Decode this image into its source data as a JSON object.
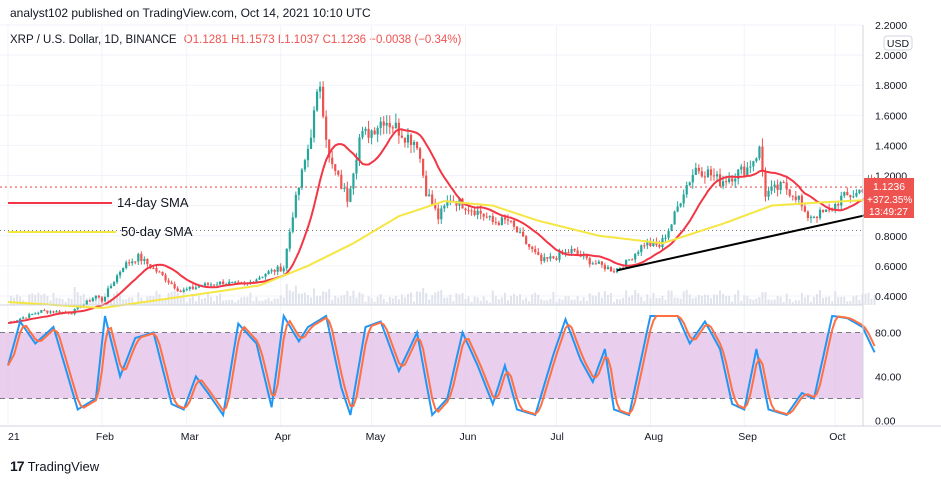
{
  "header": {
    "text": "analyst102 published on TradingView.com, Oct 14, 2021 10:10 UTC"
  },
  "legend": {
    "symbol": "XRP / U.S. Dollar, 1D, BINANCE",
    "open": "O1.1281",
    "high": "H1.1573",
    "low": "L1.1037",
    "close": "C1.1236",
    "change": "−0.0038 (−0.34%)"
  },
  "price_badge": {
    "price": "1.1236",
    "change": "+372.35%",
    "countdown": "13:49:27",
    "color": "#ef5350"
  },
  "currency": "USD",
  "footer": {
    "brand": "TradingView",
    "logo": "17"
  },
  "colors": {
    "up": "#26a69a",
    "down": "#ef5350",
    "sma14": "#f23645",
    "sma50": "#f5e642",
    "trendline": "#000000",
    "stoch_k": "#2196f3",
    "stoch_d": "#ff7043",
    "stoch_band": "#e1bee7"
  },
  "chart_data": [
    {
      "type": "candlestick",
      "title": "XRP / U.S. Dollar, 1D, BINANCE",
      "ylim": [
        0.34,
        2.2
      ],
      "y_ticks": [
        "2.2000",
        "2.0000",
        "1.8000",
        "1.6000",
        "1.4000",
        "1.2000",
        "1.0000",
        "0.8000",
        "0.6000",
        "0.4000"
      ],
      "x_ticks": [
        "21",
        "Feb",
        "Mar",
        "Apr",
        "May",
        "Jun",
        "Jul",
        "Aug",
        "Sep",
        "Oct"
      ],
      "annotations": [
        "14-day SMA",
        "50-day SMA"
      ],
      "close_anchors": [
        [
          "2021-01-01",
          0.22
        ],
        [
          "2021-01-12",
          0.3
        ],
        [
          "2021-01-22",
          0.29
        ],
        [
          "2021-01-30",
          0.4
        ],
        [
          "2021-02-01",
          0.37
        ],
        [
          "2021-02-08",
          0.6
        ],
        [
          "2021-02-13",
          0.66
        ],
        [
          "2021-02-20",
          0.55
        ],
        [
          "2021-02-27",
          0.43
        ],
        [
          "2021-03-06",
          0.47
        ],
        [
          "2021-03-13",
          0.49
        ],
        [
          "2021-03-20",
          0.47
        ],
        [
          "2021-03-27",
          0.55
        ],
        [
          "2021-04-02",
          0.59
        ],
        [
          "2021-04-05",
          0.95
        ],
        [
          "2021-04-10",
          1.38
        ],
        [
          "2021-04-14",
          1.82
        ],
        [
          "2021-04-17",
          1.3
        ],
        [
          "2021-04-23",
          1.05
        ],
        [
          "2021-04-27",
          1.45
        ],
        [
          "2021-05-01",
          1.5
        ],
        [
          "2021-05-05",
          1.58
        ],
        [
          "2021-05-09",
          1.52
        ],
        [
          "2021-05-12",
          1.47
        ],
        [
          "2021-05-16",
          1.42
        ],
        [
          "2021-05-19",
          1.1
        ],
        [
          "2021-05-23",
          0.92
        ],
        [
          "2021-05-27",
          1.05
        ],
        [
          "2021-06-01",
          1.0
        ],
        [
          "2021-06-06",
          0.95
        ],
        [
          "2021-06-10",
          0.89
        ],
        [
          "2021-06-15",
          0.9
        ],
        [
          "2021-06-21",
          0.75
        ],
        [
          "2021-06-26",
          0.63
        ],
        [
          "2021-07-01",
          0.66
        ],
        [
          "2021-07-06",
          0.7
        ],
        [
          "2021-07-12",
          0.63
        ],
        [
          "2021-07-20",
          0.57
        ],
        [
          "2021-07-24",
          0.62
        ],
        [
          "2021-07-30",
          0.75
        ],
        [
          "2021-08-04",
          0.73
        ],
        [
          "2021-08-08",
          0.88
        ],
        [
          "2021-08-12",
          1.1
        ],
        [
          "2021-08-16",
          1.25
        ],
        [
          "2021-08-20",
          1.22
        ],
        [
          "2021-08-24",
          1.16
        ],
        [
          "2021-08-28",
          1.2
        ],
        [
          "2021-09-02",
          1.25
        ],
        [
          "2021-09-06",
          1.37
        ],
        [
          "2021-09-08",
          1.08
        ],
        [
          "2021-09-14",
          1.13
        ],
        [
          "2021-09-19",
          1.05
        ],
        [
          "2021-09-21",
          0.93
        ],
        [
          "2021-09-25",
          0.94
        ],
        [
          "2021-09-29",
          0.96
        ],
        [
          "2021-10-03",
          1.05
        ],
        [
          "2021-10-08",
          1.08
        ],
        [
          "2021-10-11",
          1.14
        ],
        [
          "2021-10-14",
          1.1236
        ]
      ],
      "sma50_anchors": [
        [
          "2021-01-01",
          0.36
        ],
        [
          "2021-02-01",
          0.32
        ],
        [
          "2021-03-01",
          0.4
        ],
        [
          "2021-03-25",
          0.47
        ],
        [
          "2021-04-10",
          0.6
        ],
        [
          "2021-04-25",
          0.75
        ],
        [
          "2021-05-10",
          0.93
        ],
        [
          "2021-05-25",
          1.03
        ],
        [
          "2021-06-10",
          1.0
        ],
        [
          "2021-06-25",
          0.9
        ],
        [
          "2021-07-15",
          0.8
        ],
        [
          "2021-08-05",
          0.75
        ],
        [
          "2021-08-25",
          0.88
        ],
        [
          "2021-09-10",
          1.0
        ],
        [
          "2021-09-25",
          1.02
        ],
        [
          "2021-10-14",
          1.04
        ]
      ],
      "trendline": [
        [
          "2021-07-21",
          0.57
        ],
        [
          "2021-10-14",
          0.95
        ]
      ],
      "resistance_level": 1.1236,
      "support_level": 0.835,
      "stochastic": {
        "y_ticks": [
          "80.00",
          "40.00",
          "0.00"
        ],
        "ylim": [
          -5,
          105
        ],
        "upper_band": 80,
        "lower_band": 20,
        "k_anchors": [
          [
            "2021-01-01",
            50
          ],
          [
            "2021-01-05",
            90
          ],
          [
            "2021-01-10",
            70
          ],
          [
            "2021-01-16",
            85
          ],
          [
            "2021-01-24",
            10
          ],
          [
            "2021-01-30",
            20
          ],
          [
            "2021-02-02",
            95
          ],
          [
            "2021-02-07",
            40
          ],
          [
            "2021-02-12",
            75
          ],
          [
            "2021-02-18",
            80
          ],
          [
            "2021-02-24",
            15
          ],
          [
            "2021-02-28",
            10
          ],
          [
            "2021-03-04",
            40
          ],
          [
            "2021-03-08",
            25
          ],
          [
            "2021-03-13",
            5
          ],
          [
            "2021-03-18",
            88
          ],
          [
            "2021-03-24",
            70
          ],
          [
            "2021-03-29",
            12
          ],
          [
            "2021-04-02",
            95
          ],
          [
            "2021-04-07",
            72
          ],
          [
            "2021-04-10",
            85
          ],
          [
            "2021-04-16",
            95
          ],
          [
            "2021-04-21",
            30
          ],
          [
            "2021-04-24",
            5
          ],
          [
            "2021-04-29",
            85
          ],
          [
            "2021-05-04",
            90
          ],
          [
            "2021-05-10",
            45
          ],
          [
            "2021-05-16",
            80
          ],
          [
            "2021-05-21",
            5
          ],
          [
            "2021-05-26",
            20
          ],
          [
            "2021-05-31",
            80
          ],
          [
            "2021-06-05",
            50
          ],
          [
            "2021-06-10",
            15
          ],
          [
            "2021-06-14",
            50
          ],
          [
            "2021-06-18",
            10
          ],
          [
            "2021-06-24",
            5
          ],
          [
            "2021-06-30",
            60
          ],
          [
            "2021-07-04",
            92
          ],
          [
            "2021-07-09",
            55
          ],
          [
            "2021-07-13",
            35
          ],
          [
            "2021-07-17",
            65
          ],
          [
            "2021-07-20",
            10
          ],
          [
            "2021-07-25",
            5
          ],
          [
            "2021-08-01",
            95
          ],
          [
            "2021-08-10",
            95
          ],
          [
            "2021-08-14",
            70
          ],
          [
            "2021-08-19",
            90
          ],
          [
            "2021-08-24",
            65
          ],
          [
            "2021-08-28",
            15
          ],
          [
            "2021-09-01",
            10
          ],
          [
            "2021-09-05",
            65
          ],
          [
            "2021-09-09",
            10
          ],
          [
            "2021-09-15",
            5
          ],
          [
            "2021-09-20",
            25
          ],
          [
            "2021-09-24",
            20
          ],
          [
            "2021-09-30",
            95
          ],
          [
            "2021-10-05",
            93
          ],
          [
            "2021-10-10",
            85
          ],
          [
            "2021-10-14",
            62
          ]
        ]
      }
    }
  ]
}
